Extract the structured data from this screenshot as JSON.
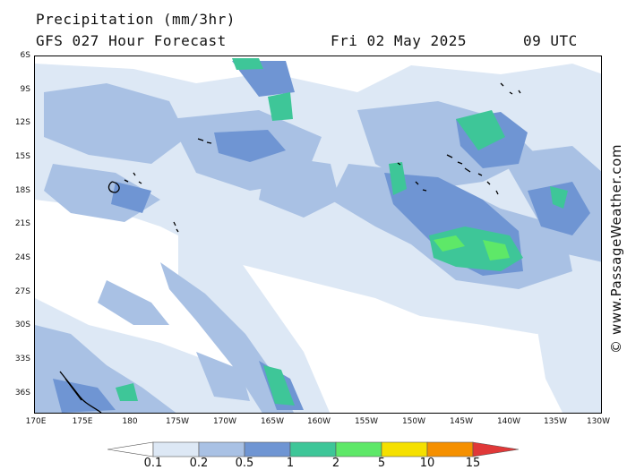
{
  "header": {
    "title": "Precipitation (mm/3hr)",
    "forecast": "GFS 027 Hour Forecast",
    "date": "Fri 02 May 2025",
    "time": "09 UTC"
  },
  "credit": "© www.PassageWeather.com",
  "map": {
    "lat_labels": [
      "6S",
      "9S",
      "12S",
      "15S",
      "18S",
      "21S",
      "24S",
      "27S",
      "30S",
      "33S",
      "36S"
    ],
    "lon_labels": [
      "170E",
      "175E",
      "180",
      "175W",
      "170W",
      "165W",
      "160W",
      "155W",
      "150W",
      "145W",
      "140W",
      "135W",
      "130W"
    ],
    "colors": {
      "very_light": "#dde8f5",
      "light": "#a9c1e4",
      "medium": "#6f95d3",
      "teal": "#3ec698",
      "green": "#5ee868",
      "coast": "#000000"
    }
  },
  "legend": {
    "labels": [
      "0.1",
      "0.2",
      "0.5",
      "1",
      "2",
      "5",
      "10",
      "15"
    ],
    "colors": [
      "#ffffff",
      "#dde8f5",
      "#a9c1e4",
      "#6f95d3",
      "#3ec698",
      "#5ee868",
      "#f5e000",
      "#f59000",
      "#e03838"
    ]
  }
}
